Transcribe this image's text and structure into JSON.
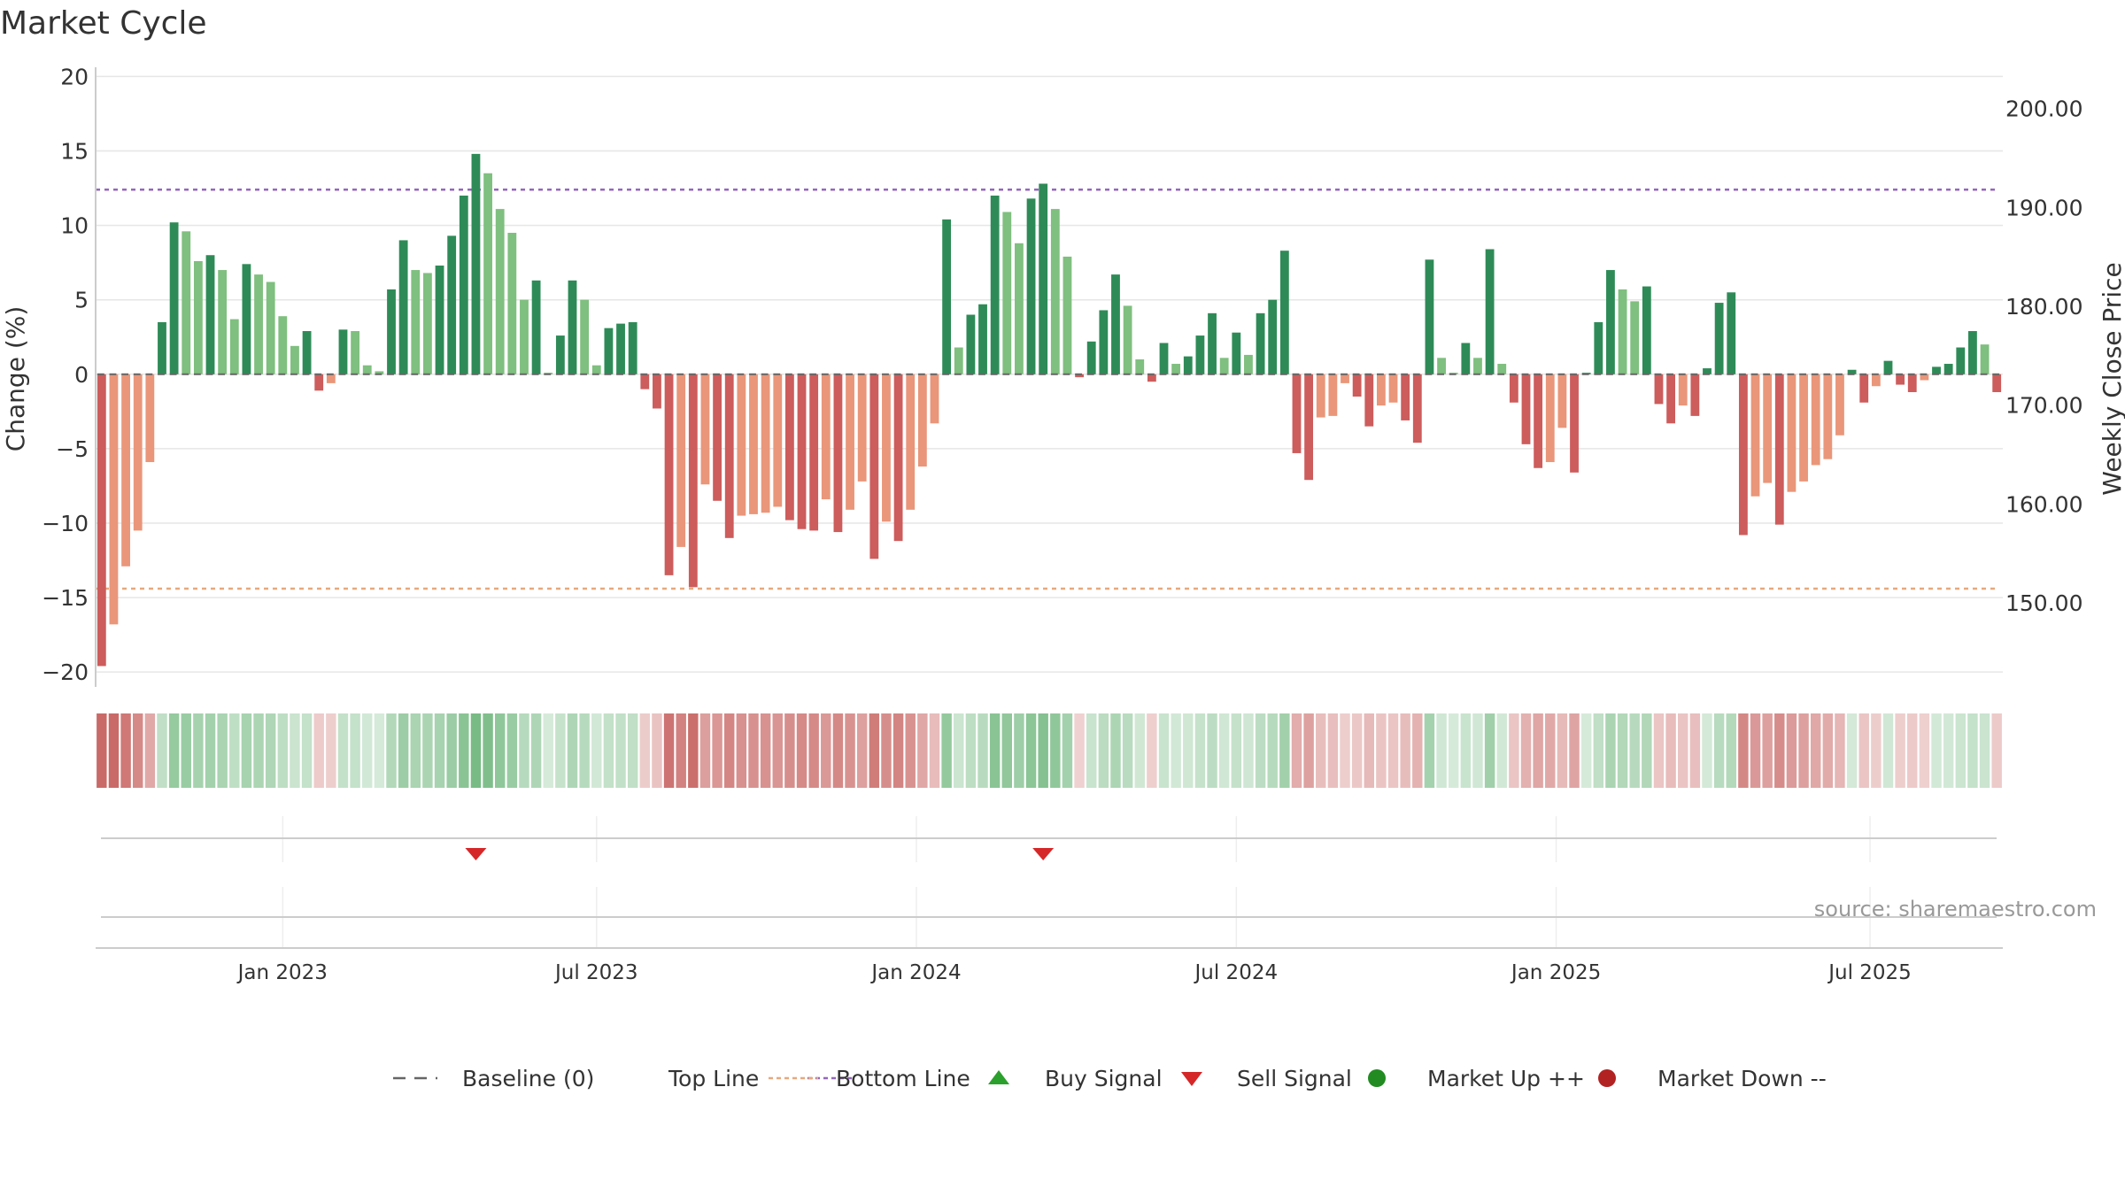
{
  "chart_data": {
    "type": "bar",
    "title": "Market Cycle",
    "ylabel_left": "Change (%)",
    "ylabel_right": "Weekly Close Price",
    "source": "source: sharemaestro.com",
    "ylim_left": [
      -21,
      20.5
    ],
    "ylim_right": [
      141.5,
      204
    ],
    "yticks_left": [
      20,
      15,
      10,
      5,
      0,
      -5,
      -10,
      -15,
      -20
    ],
    "yticks_left_labels": [
      "20",
      "15",
      "10",
      "5",
      "0",
      "−5",
      "−10",
      "−15",
      "−20"
    ],
    "yticks_right": [
      200,
      190,
      180,
      170,
      160,
      150
    ],
    "yticks_right_labels": [
      "200.00",
      "190.00",
      "180.00",
      "170.00",
      "160.00",
      "150.00"
    ],
    "x_ticks": [
      {
        "label": "Jan 2023",
        "week": 15
      },
      {
        "label": "Jul 2023",
        "week": 41
      },
      {
        "label": "Jan 2024",
        "week": 67.5
      },
      {
        "label": "Jul 2024",
        "week": 94
      },
      {
        "label": "Jan 2025",
        "week": 120.5
      },
      {
        "label": "Jul 2025",
        "week": 146.5
      }
    ],
    "top_line": 12.4,
    "bottom_line": -14.4,
    "values": [
      -19.6,
      -16.8,
      -12.9,
      -10.5,
      -5.9,
      3.5,
      10.2,
      9.6,
      7.6,
      8.0,
      7.0,
      3.7,
      7.4,
      6.7,
      6.2,
      3.9,
      1.9,
      2.9,
      -1.1,
      -0.6,
      3.0,
      2.9,
      0.6,
      0.2,
      5.7,
      9.0,
      7.0,
      6.8,
      7.3,
      9.3,
      12.0,
      14.8,
      13.5,
      11.1,
      9.5,
      5.0,
      6.3,
      0.1,
      2.6,
      6.3,
      5.0,
      0.6,
      3.1,
      3.4,
      3.5,
      -1.0,
      -2.3,
      -13.5,
      -11.6,
      -14.3,
      -7.4,
      -8.5,
      -11.0,
      -9.5,
      -9.4,
      -9.3,
      -8.9,
      -9.8,
      -10.4,
      -10.5,
      -8.4,
      -10.6,
      -9.1,
      -7.2,
      -12.4,
      -9.9,
      -11.2,
      -9.1,
      -6.2,
      -3.3,
      10.4,
      1.8,
      4.0,
      4.7,
      12.0,
      10.9,
      8.8,
      11.8,
      12.8,
      11.1,
      7.9,
      -0.2,
      2.2,
      4.3,
      6.7,
      4.6,
      1.0,
      -0.5,
      2.1,
      0.7,
      1.2,
      2.6,
      4.1,
      1.1,
      2.8,
      1.3,
      4.1,
      5.0,
      8.3,
      -5.3,
      -7.1,
      -2.9,
      -2.8,
      -0.6,
      -1.5,
      -3.5,
      -2.1,
      -1.9,
      -3.1,
      -4.6,
      7.7,
      1.1,
      0.1,
      2.1,
      1.1,
      8.4,
      0.7,
      -1.9,
      -4.7,
      -6.3,
      -5.9,
      -3.6,
      -6.6,
      0.1,
      3.5,
      7.0,
      5.7,
      4.9,
      5.9,
      -2.0,
      -3.3,
      -2.1,
      -2.8,
      0.4,
      4.8,
      5.5,
      -10.8,
      -8.2,
      -7.3,
      -10.1,
      -7.9,
      -7.2,
      -6.1,
      -5.7,
      -4.1,
      0.3,
      -1.9,
      -0.8,
      0.9,
      -0.7,
      -1.2,
      -0.4,
      0.5,
      0.7,
      1.8,
      2.9,
      2.0,
      -1.2
    ],
    "sell_signals": [
      31,
      78
    ],
    "buy_signals": [],
    "legend": [
      {
        "type": "dashed-gray",
        "label": "Baseline (0)"
      },
      {
        "type": "dotted-purple",
        "label": "Top Line"
      },
      {
        "type": "dotted-orange",
        "label": "Bottom Line"
      },
      {
        "type": "triangle-up-green",
        "label": "Buy Signal"
      },
      {
        "type": "triangle-down-red",
        "label": "Sell Signal"
      },
      {
        "type": "dot-green",
        "label": "Market Up ++"
      },
      {
        "type": "dot-red",
        "label": "Market Down --"
      }
    ],
    "colors": {
      "pos_strong": "#2e8b57",
      "pos_weak": "#7fbf7f",
      "neg_strong": "#cd5c5c",
      "neg_weak": "#e9967a",
      "top_line": "#9467bd",
      "bottom_line": "#e8a87c",
      "baseline": "#666666",
      "buy": "#2ca02c",
      "sell": "#d62728",
      "up_dot": "#228b22",
      "down_dot": "#b22222"
    }
  }
}
